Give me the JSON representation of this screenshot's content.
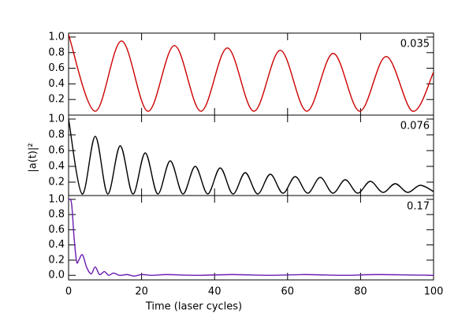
{
  "chart_data": [
    {
      "type": "line",
      "annotation": "0.035",
      "x": [
        0,
        7.25,
        14.5,
        21.75,
        29,
        36.25,
        43.5,
        50.75,
        58,
        65.25,
        72.5,
        79.75,
        87,
        94.25,
        100
      ],
      "series": [
        {
          "color": "#cc0000",
          "values": [
            1.03,
            0.05,
            0.95,
            0.05,
            0.89,
            0.05,
            0.86,
            0.05,
            0.83,
            0.05,
            0.79,
            0.05,
            0.75,
            0.05,
            0.55
          ]
        }
      ],
      "ylim": [
        0,
        1.05
      ],
      "yticks": [
        0.2,
        0.4,
        0.6,
        0.8,
        {
          "value": 1,
          "label": "1.0"
        }
      ]
    },
    {
      "type": "line",
      "annotation": "0.076",
      "ylabel": "|a(t)|²",
      "x": [
        0,
        3.7,
        7.3,
        10.7,
        14.15,
        17.6,
        21,
        24.4,
        27.85,
        31.3,
        34.7,
        38.1,
        41.55,
        45,
        48.4,
        51.8,
        55.25,
        58.7,
        62.1,
        65.5,
        68.95,
        72.4,
        75.8,
        79.2,
        82.65,
        86.1,
        89.5,
        92.9,
        96.35,
        100
      ],
      "series": [
        {
          "color": "#000000",
          "values": [
            1.0,
            0.05,
            0.78,
            0.05,
            0.66,
            0.05,
            0.57,
            0.05,
            0.47,
            0.05,
            0.4,
            0.05,
            0.38,
            0.05,
            0.32,
            0.05,
            0.3,
            0.06,
            0.27,
            0.06,
            0.26,
            0.06,
            0.23,
            0.06,
            0.21,
            0.07,
            0.18,
            0.07,
            0.16,
            0.08
          ]
        }
      ],
      "ylim": [
        0.03,
        1.05
      ],
      "yticks": [
        0.2,
        0.4,
        0.6,
        0.8,
        {
          "value": 1,
          "label": "1.0"
        }
      ]
    },
    {
      "type": "line",
      "annotation": "0.17",
      "xlabel": "Time (laser cycles)",
      "x": [
        0,
        0.8,
        1.5,
        2.2,
        2.8,
        3.8,
        5,
        6.2,
        7.3,
        8.5,
        9.8,
        11,
        12.3,
        14,
        16,
        18,
        20,
        23,
        27,
        35,
        45,
        55,
        65,
        75,
        85,
        100
      ],
      "series": [
        {
          "color": "#6a1bb0",
          "values": [
            1.0,
            0.95,
            0.5,
            0.18,
            0.2,
            0.27,
            0.1,
            0.02,
            0.11,
            0.01,
            0.05,
            0.0,
            0.03,
            0.0,
            0.01,
            -0.01,
            0.01,
            0.0,
            0.01,
            0.0,
            0.01,
            0.0,
            0.01,
            0.0,
            0.01,
            0.0
          ]
        }
      ],
      "ylim": [
        -0.06,
        1.05
      ],
      "yticks": [
        {
          "value": 0,
          "label": "0.0"
        },
        0.2,
        0.4,
        0.6,
        0.8,
        {
          "value": 1,
          "label": "1.0"
        }
      ],
      "xlim": [
        0,
        100
      ],
      "xticks": [
        0,
        20,
        40,
        60,
        80,
        100
      ]
    }
  ]
}
